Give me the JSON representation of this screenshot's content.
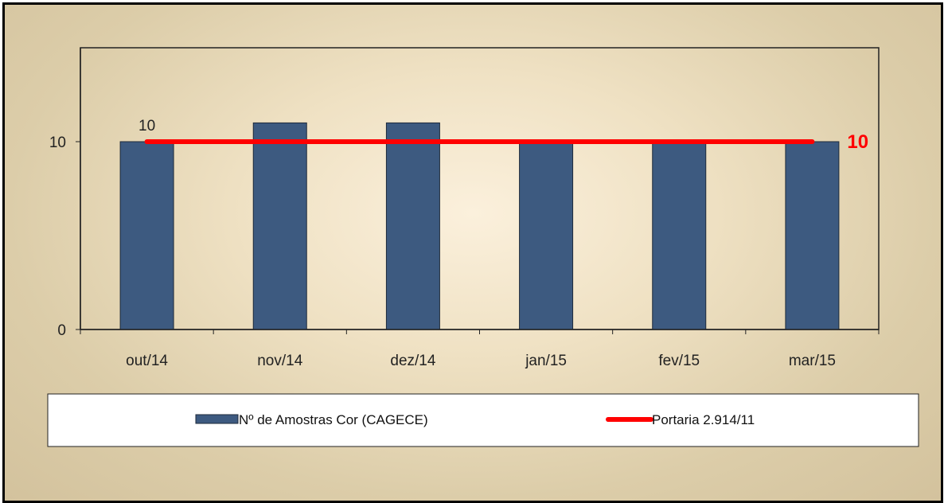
{
  "chart_data": {
    "type": "bar",
    "categories": [
      "out/14",
      "nov/14",
      "dez/14",
      "jan/15",
      "fev/15",
      "mar/15"
    ],
    "series": [
      {
        "name": "Nº de Amostras Cor (CAGECE)",
        "values": [
          10,
          11,
          11,
          10,
          10,
          10
        ],
        "color": "#3d5a80"
      }
    ],
    "reference_line": {
      "name": "Portaria 2.914/11",
      "value": 10,
      "color": "#ff0000",
      "label": "10"
    },
    "data_labels": [
      {
        "category_index": 0,
        "text": "10"
      }
    ],
    "ylim": [
      0,
      15
    ],
    "yticks": [
      0,
      10
    ],
    "ytick_labels": [
      "0",
      "10"
    ],
    "title": "",
    "xlabel": "",
    "ylabel": "",
    "grid": false,
    "legend_position": "bottom"
  }
}
